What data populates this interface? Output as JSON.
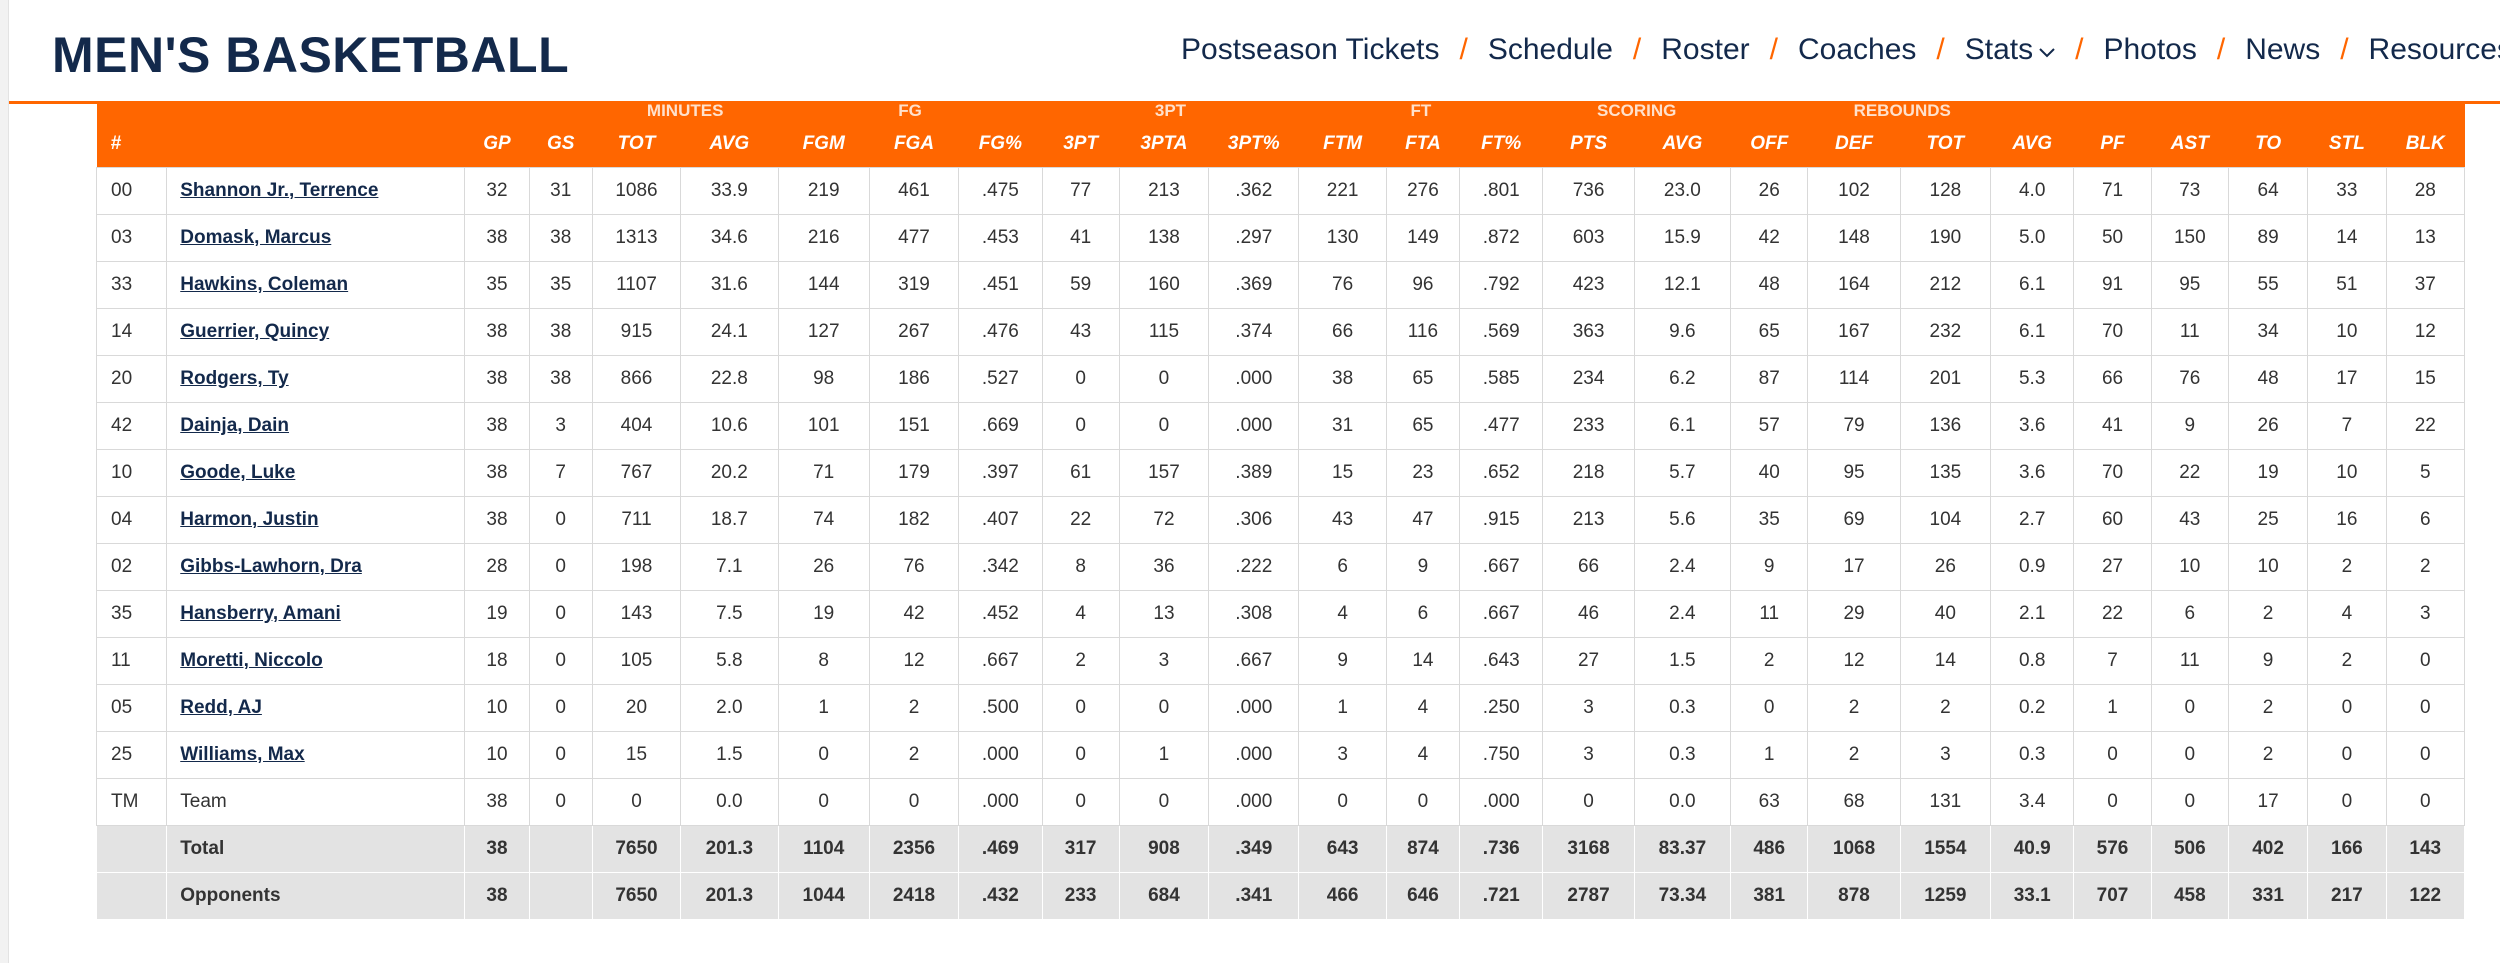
{
  "header": {
    "title": "MEN'S BASKETBALL",
    "nav": [
      "Postseason Tickets",
      "Schedule",
      "Roster",
      "Coaches",
      "Stats",
      "Photos",
      "News",
      "Resources"
    ],
    "separator": "/"
  },
  "table": {
    "groups": [
      "MINUTES",
      "FG",
      "3PT",
      "FT",
      "SCORING",
      "REBOUNDS"
    ],
    "columns": [
      "#",
      "",
      "GP",
      "GS",
      "TOT",
      "AVG",
      "FGM",
      "FGA",
      "FG%",
      "3PT",
      "3PTA",
      "3PT%",
      "FTM",
      "FTA",
      "FT%",
      "PTS",
      "AVG",
      "OFF",
      "DEF",
      "TOT",
      "AVG",
      "PF",
      "AST",
      "TO",
      "STL",
      "BLK"
    ],
    "rows": [
      [
        "00",
        "Shannon Jr., Terrence",
        "32",
        "31",
        "1086",
        "33.9",
        "219",
        "461",
        ".475",
        "77",
        "213",
        ".362",
        "221",
        "276",
        ".801",
        "736",
        "23.0",
        "26",
        "102",
        "128",
        "4.0",
        "71",
        "73",
        "64",
        "33",
        "28"
      ],
      [
        "03",
        "Domask, Marcus",
        "38",
        "38",
        "1313",
        "34.6",
        "216",
        "477",
        ".453",
        "41",
        "138",
        ".297",
        "130",
        "149",
        ".872",
        "603",
        "15.9",
        "42",
        "148",
        "190",
        "5.0",
        "50",
        "150",
        "89",
        "14",
        "13"
      ],
      [
        "33",
        "Hawkins, Coleman",
        "35",
        "35",
        "1107",
        "31.6",
        "144",
        "319",
        ".451",
        "59",
        "160",
        ".369",
        "76",
        "96",
        ".792",
        "423",
        "12.1",
        "48",
        "164",
        "212",
        "6.1",
        "91",
        "95",
        "55",
        "51",
        "37"
      ],
      [
        "14",
        "Guerrier, Quincy",
        "38",
        "38",
        "915",
        "24.1",
        "127",
        "267",
        ".476",
        "43",
        "115",
        ".374",
        "66",
        "116",
        ".569",
        "363",
        "9.6",
        "65",
        "167",
        "232",
        "6.1",
        "70",
        "11",
        "34",
        "10",
        "12"
      ],
      [
        "20",
        "Rodgers, Ty",
        "38",
        "38",
        "866",
        "22.8",
        "98",
        "186",
        ".527",
        "0",
        "0",
        ".000",
        "38",
        "65",
        ".585",
        "234",
        "6.2",
        "87",
        "114",
        "201",
        "5.3",
        "66",
        "76",
        "48",
        "17",
        "15"
      ],
      [
        "42",
        "Dainja, Dain",
        "38",
        "3",
        "404",
        "10.6",
        "101",
        "151",
        ".669",
        "0",
        "0",
        ".000",
        "31",
        "65",
        ".477",
        "233",
        "6.1",
        "57",
        "79",
        "136",
        "3.6",
        "41",
        "9",
        "26",
        "7",
        "22"
      ],
      [
        "10",
        "Goode, Luke",
        "38",
        "7",
        "767",
        "20.2",
        "71",
        "179",
        ".397",
        "61",
        "157",
        ".389",
        "15",
        "23",
        ".652",
        "218",
        "5.7",
        "40",
        "95",
        "135",
        "3.6",
        "70",
        "22",
        "19",
        "10",
        "5"
      ],
      [
        "04",
        "Harmon, Justin",
        "38",
        "0",
        "711",
        "18.7",
        "74",
        "182",
        ".407",
        "22",
        "72",
        ".306",
        "43",
        "47",
        ".915",
        "213",
        "5.6",
        "35",
        "69",
        "104",
        "2.7",
        "60",
        "43",
        "25",
        "16",
        "6"
      ],
      [
        "02",
        "Gibbs-Lawhorn, Dra",
        "28",
        "0",
        "198",
        "7.1",
        "26",
        "76",
        ".342",
        "8",
        "36",
        ".222",
        "6",
        "9",
        ".667",
        "66",
        "2.4",
        "9",
        "17",
        "26",
        "0.9",
        "27",
        "10",
        "10",
        "2",
        "2"
      ],
      [
        "35",
        "Hansberry, Amani",
        "19",
        "0",
        "143",
        "7.5",
        "19",
        "42",
        ".452",
        "4",
        "13",
        ".308",
        "4",
        "6",
        ".667",
        "46",
        "2.4",
        "11",
        "29",
        "40",
        "2.1",
        "22",
        "6",
        "2",
        "4",
        "3"
      ],
      [
        "11",
        "Moretti, Niccolo",
        "18",
        "0",
        "105",
        "5.8",
        "8",
        "12",
        ".667",
        "2",
        "3",
        ".667",
        "9",
        "14",
        ".643",
        "27",
        "1.5",
        "2",
        "12",
        "14",
        "0.8",
        "7",
        "11",
        "9",
        "2",
        "0"
      ],
      [
        "05",
        "Redd, AJ",
        "10",
        "0",
        "20",
        "2.0",
        "1",
        "2",
        ".500",
        "0",
        "0",
        ".000",
        "1",
        "4",
        ".250",
        "3",
        "0.3",
        "0",
        "2",
        "2",
        "0.2",
        "1",
        "0",
        "2",
        "0",
        "0"
      ],
      [
        "25",
        "Williams, Max",
        "10",
        "0",
        "15",
        "1.5",
        "0",
        "2",
        ".000",
        "0",
        "1",
        ".000",
        "3",
        "4",
        ".750",
        "3",
        "0.3",
        "1",
        "2",
        "3",
        "0.3",
        "0",
        "0",
        "2",
        "0",
        "0"
      ],
      [
        "TM",
        "Team",
        "38",
        "0",
        "0",
        "0.0",
        "0",
        "0",
        ".000",
        "0",
        "0",
        ".000",
        "0",
        "0",
        ".000",
        "0",
        "0.0",
        "63",
        "68",
        "131",
        "3.4",
        "0",
        "0",
        "17",
        "0",
        "0"
      ]
    ],
    "summary": [
      [
        "",
        "Total",
        "38",
        "",
        "7650",
        "201.3",
        "1104",
        "2356",
        ".469",
        "317",
        "908",
        ".349",
        "643",
        "874",
        ".736",
        "3168",
        "83.37",
        "486",
        "1068",
        "1554",
        "40.9",
        "576",
        "506",
        "402",
        "166",
        "143"
      ],
      [
        "",
        "Opponents",
        "38",
        "",
        "7650",
        "201.3",
        "1044",
        "2418",
        ".432",
        "233",
        "684",
        ".341",
        "466",
        "646",
        ".721",
        "2787",
        "73.34",
        "381",
        "878",
        "1259",
        "33.1",
        "707",
        "458",
        "331",
        "217",
        "122"
      ]
    ]
  }
}
